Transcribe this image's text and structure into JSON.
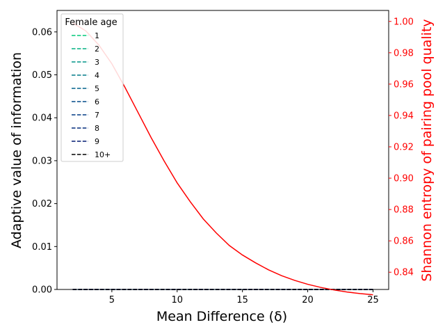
{
  "chart_data": {
    "type": "line",
    "xlabel": "Mean Difference (δ)",
    "ylabel_left": "Adaptive value of information",
    "ylabel_right": "Shannon entropy of pairing pool quality",
    "xlim": [
      0.8,
      26.2
    ],
    "ylim_left": [
      0,
      0.065
    ],
    "ylim_right": [
      0.829,
      1.007
    ],
    "x_ticks": [
      "5",
      "10",
      "15",
      "20",
      "25"
    ],
    "y_ticks_left": [
      "0.00",
      "0.01",
      "0.02",
      "0.03",
      "0.04",
      "0.05",
      "0.06"
    ],
    "y_ticks_right": [
      "0.84",
      "0.86",
      "0.88",
      "0.90",
      "0.92",
      "0.94",
      "0.96",
      "0.98",
      "1.00"
    ],
    "legend_title": "Female age",
    "legend_position": "upper left",
    "right_axis_color": "#ff0000",
    "series": [
      {
        "name": "1",
        "axis": "left",
        "style": "dashed",
        "color": "#00c878",
        "x": [
          2,
          25
        ],
        "y": [
          0.0,
          0.0
        ]
      },
      {
        "name": "2",
        "axis": "left",
        "style": "dashed",
        "color": "#00b080",
        "x": [
          2,
          25
        ],
        "y": [
          0.0,
          0.0
        ]
      },
      {
        "name": "3",
        "axis": "left",
        "style": "dashed",
        "color": "#009488",
        "x": [
          2,
          25
        ],
        "y": [
          0.0,
          0.0
        ]
      },
      {
        "name": "4",
        "axis": "left",
        "style": "dashed",
        "color": "#007a88",
        "x": [
          2,
          25
        ],
        "y": [
          0.0,
          0.0
        ]
      },
      {
        "name": "5",
        "axis": "left",
        "style": "dashed",
        "color": "#00608a",
        "x": [
          2,
          25
        ],
        "y": [
          0.0,
          0.0
        ]
      },
      {
        "name": "6",
        "axis": "left",
        "style": "dashed",
        "color": "#004a88",
        "x": [
          2,
          25
        ],
        "y": [
          0.0,
          0.0
        ]
      },
      {
        "name": "7",
        "axis": "left",
        "style": "dashed",
        "color": "#003a84",
        "x": [
          2,
          25
        ],
        "y": [
          0.0,
          0.0
        ]
      },
      {
        "name": "8",
        "axis": "left",
        "style": "dashed",
        "color": "#002a7c",
        "x": [
          2,
          25
        ],
        "y": [
          0.0,
          0.0
        ]
      },
      {
        "name": "9",
        "axis": "left",
        "style": "dashed",
        "color": "#001a70",
        "x": [
          2,
          25
        ],
        "y": [
          0.0,
          0.0
        ]
      },
      {
        "name": "10+",
        "axis": "left",
        "style": "dashed",
        "color": "#000000",
        "x": [
          2,
          25
        ],
        "y": [
          0.0,
          0.0
        ]
      },
      {
        "axis": "right",
        "style": "solid",
        "color": "#ff0000",
        "x": [
          2,
          3,
          4,
          5,
          6,
          7,
          8,
          9,
          10,
          11,
          12,
          13,
          14,
          15,
          16,
          17,
          18,
          19,
          20,
          21,
          22,
          23,
          24,
          25
        ],
        "y": [
          0.999,
          0.994,
          0.985,
          0.973,
          0.958,
          0.942,
          0.926,
          0.911,
          0.897,
          0.885,
          0.874,
          0.865,
          0.857,
          0.851,
          0.846,
          0.8415,
          0.8378,
          0.8348,
          0.8323,
          0.8303,
          0.8287,
          0.8274,
          0.8264,
          0.8256
        ]
      }
    ]
  }
}
